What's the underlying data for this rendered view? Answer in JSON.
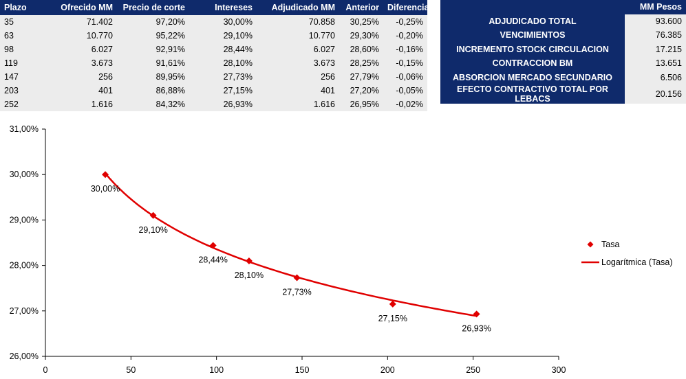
{
  "auction_table": {
    "headers": [
      "Plazo",
      "Ofrecido MM",
      "Precio de corte",
      "Intereses",
      "Adjudicado MM",
      "Anterior",
      "Diferencia"
    ],
    "rows": [
      [
        "35",
        "71.402",
        "97,20%",
        "30,00%",
        "70.858",
        "30,25%",
        "-0,25%"
      ],
      [
        "63",
        "10.770",
        "95,22%",
        "29,10%",
        "10.770",
        "29,30%",
        "-0,20%"
      ],
      [
        "98",
        "6.027",
        "92,91%",
        "28,44%",
        "6.027",
        "28,60%",
        "-0,16%"
      ],
      [
        "119",
        "3.673",
        "91,61%",
        "28,10%",
        "3.673",
        "28,25%",
        "-0,15%"
      ],
      [
        "147",
        "256",
        "89,95%",
        "27,73%",
        "256",
        "27,79%",
        "-0,06%"
      ],
      [
        "203",
        "401",
        "86,88%",
        "27,15%",
        "401",
        "27,20%",
        "-0,05%"
      ],
      [
        "252",
        "1.616",
        "84,32%",
        "26,93%",
        "1.616",
        "26,95%",
        "-0,02%"
      ]
    ]
  },
  "summary_table": {
    "header_value": "MM Pesos",
    "rows": [
      {
        "label": "ADJUDICADO TOTAL",
        "value": "93.600"
      },
      {
        "label": "VENCIMIENTOS",
        "value": "76.385"
      },
      {
        "label": "INCREMENTO STOCK CIRCULACION",
        "value": "17.215"
      },
      {
        "label": "CONTRACCION BM",
        "value": "13.651"
      },
      {
        "label": "ABSORCION MERCADO SECUNDARIO",
        "value": "6.506"
      },
      {
        "label": "EFECTO CONTRACTIVO TOTAL POR LEBACS",
        "value": "20.156"
      }
    ]
  },
  "colors": {
    "header_bg": "#0f2a6b",
    "cell_bg": "#ececec",
    "series": "#e00000"
  },
  "chart_data": {
    "type": "scatter",
    "x": [
      35,
      63,
      98,
      119,
      147,
      203,
      252
    ],
    "y": [
      30.0,
      29.1,
      28.44,
      28.1,
      27.73,
      27.15,
      26.93
    ],
    "data_labels": [
      "30,00%",
      "29,10%",
      "28,44%",
      "28,10%",
      "27,73%",
      "27,15%",
      "26,93%"
    ],
    "xlim": [
      0,
      300
    ],
    "ylim": [
      26.0,
      31.0
    ],
    "x_ticks": [
      0,
      50,
      100,
      150,
      200,
      250,
      300
    ],
    "x_tick_labels": [
      "0",
      "50",
      "100",
      "150",
      "200",
      "250",
      "300"
    ],
    "y_ticks": [
      26,
      27,
      28,
      29,
      30,
      31
    ],
    "y_tick_labels": [
      "26,00%",
      "27,00%",
      "28,00%",
      "29,00%",
      "30,00%",
      "31,00%"
    ],
    "series": [
      {
        "name": "Tasa",
        "marker": "diamond"
      },
      {
        "name": "Logarítmica (Tasa)",
        "kind": "trendline-log"
      }
    ],
    "legend_position": "right",
    "grid": false
  }
}
